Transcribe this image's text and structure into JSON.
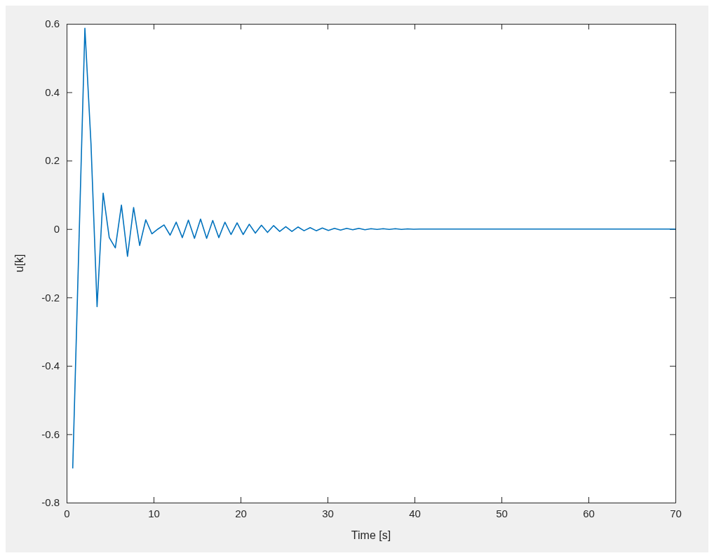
{
  "chart_data": {
    "type": "line",
    "xlabel": "Time [s]",
    "ylabel": "u[k]",
    "xlim": [
      0,
      70
    ],
    "ylim": [
      -0.8,
      0.6
    ],
    "xticks": [
      0,
      10,
      20,
      30,
      40,
      50,
      60,
      70
    ],
    "yticks": [
      -0.8,
      -0.6,
      -0.4,
      -0.2,
      0,
      0.2,
      0.4,
      0.6
    ],
    "grid": false,
    "legend": false,
    "series": [
      {
        "color": "#0072bd",
        "x": [
          0.7,
          1.4,
          2.1,
          2.8,
          3.5,
          4.2,
          4.9,
          5.6,
          6.3,
          7.0,
          7.7,
          8.4,
          9.1,
          9.8,
          10.5,
          11.2,
          11.9,
          12.6,
          13.3,
          14.0,
          14.7,
          15.4,
          16.1,
          16.8,
          17.5,
          18.2,
          18.9,
          19.6,
          20.3,
          21.0,
          21.7,
          22.4,
          23.1,
          23.8,
          24.5,
          25.2,
          25.9,
          26.6,
          27.3,
          28.0,
          28.7,
          29.4,
          30.1,
          30.8,
          31.5,
          32.2,
          32.9,
          33.6,
          34.3,
          35.0,
          35.7,
          36.4,
          37.1,
          37.8,
          38.5,
          39.2,
          39.9,
          40.6,
          70
        ],
        "values": [
          -0.7,
          -0.055,
          0.587,
          0.25,
          -0.227,
          0.105,
          -0.025,
          -0.055,
          0.07,
          -0.08,
          0.063,
          -0.048,
          0.027,
          -0.014,
          0.0,
          0.012,
          -0.018,
          0.02,
          -0.025,
          0.026,
          -0.027,
          0.029,
          -0.027,
          0.025,
          -0.025,
          0.02,
          -0.016,
          0.018,
          -0.016,
          0.014,
          -0.012,
          0.011,
          -0.01,
          0.01,
          -0.007,
          0.007,
          -0.007,
          0.006,
          -0.005,
          0.004,
          -0.005,
          0.003,
          -0.004,
          0.002,
          -0.003,
          0.002,
          -0.002,
          0.002,
          -0.002,
          0.001,
          -0.001,
          0.001,
          -0.001,
          0.001,
          -0.001,
          0.0005,
          -0.0005,
          0,
          0
        ]
      }
    ]
  }
}
